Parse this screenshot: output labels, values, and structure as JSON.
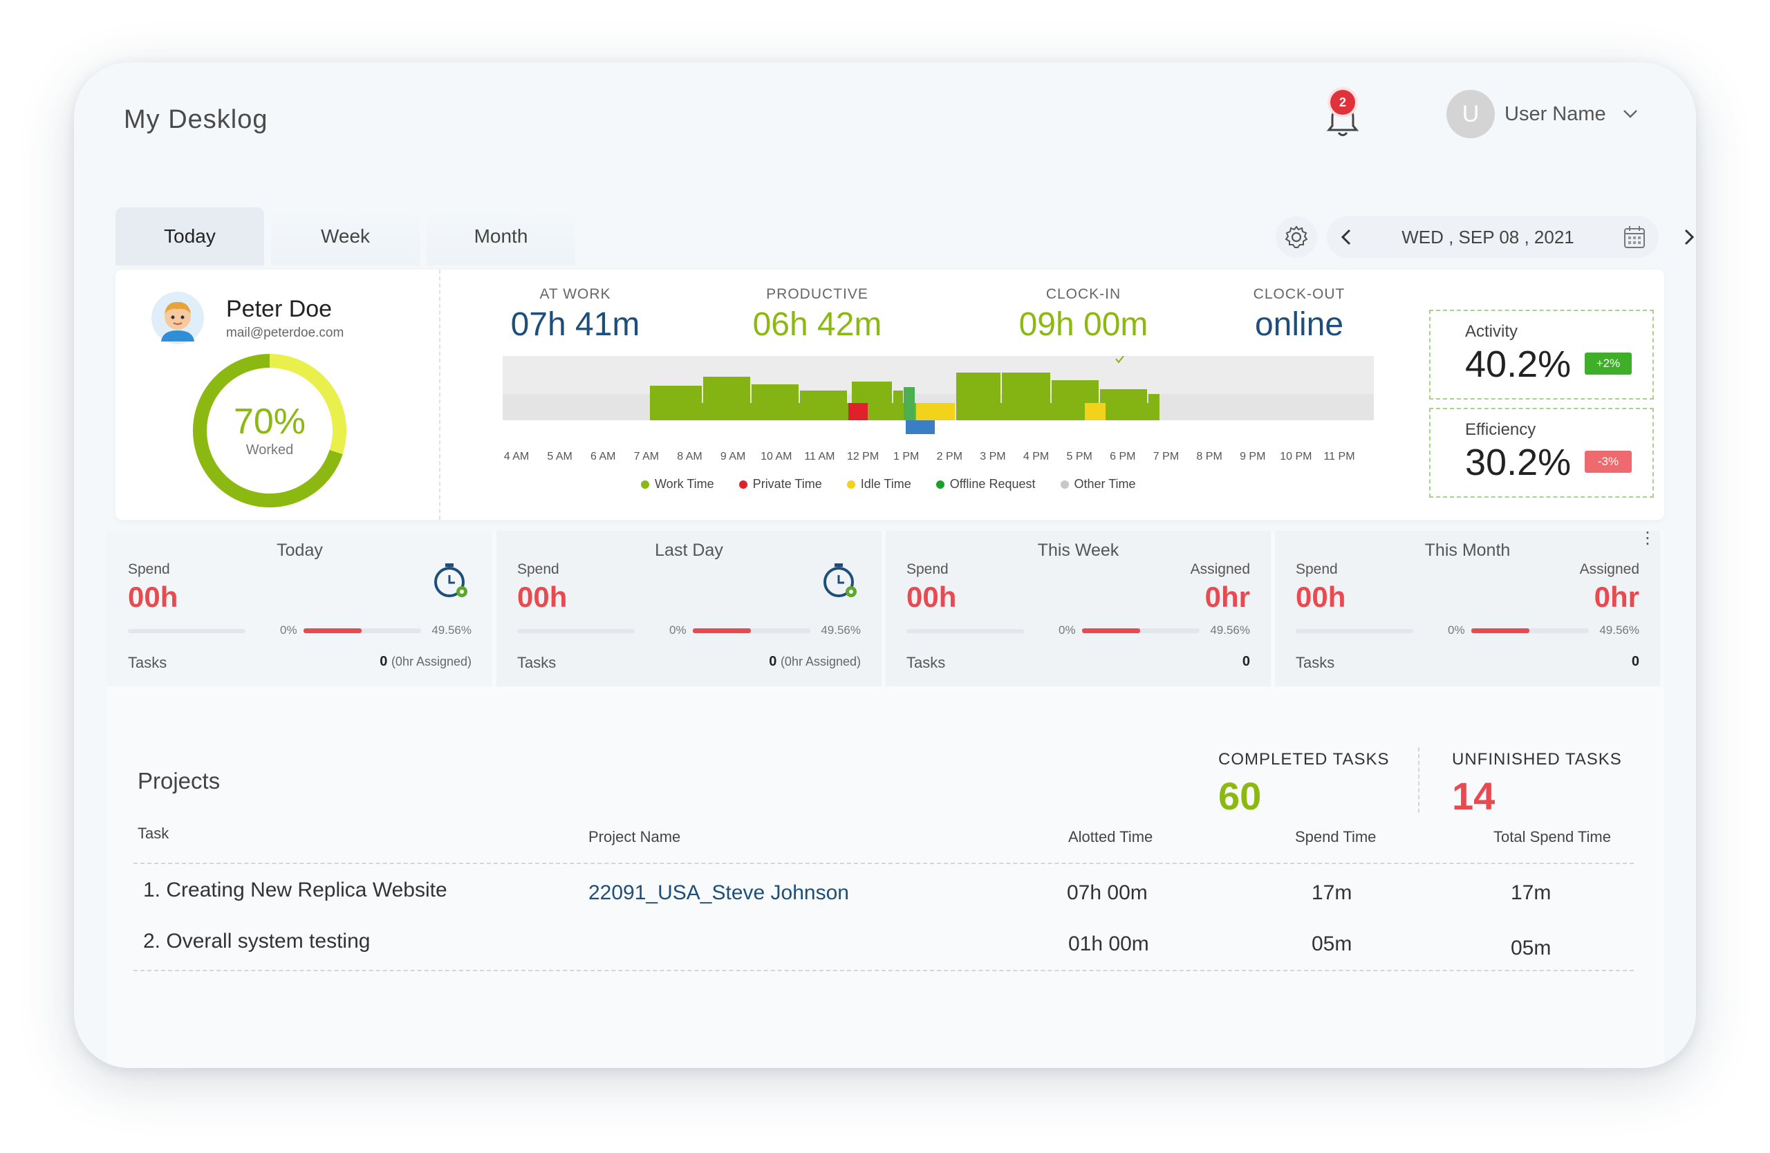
{
  "app": {
    "title": "My Desklog"
  },
  "header": {
    "notification_count": "2",
    "user_initial": "U",
    "user_name": "User Name"
  },
  "tabs": [
    {
      "label": "Today",
      "active": true
    },
    {
      "label": "Week"
    },
    {
      "label": "Month"
    }
  ],
  "date": {
    "text": "WED , SEP 08 , 2021"
  },
  "profile": {
    "name": "Peter Doe",
    "email": "mail@peterdoe.com",
    "worked_pct": "70%",
    "worked_label": "Worked",
    "worked_value": 0.7
  },
  "stats": {
    "at_work": {
      "label": "AT WORK",
      "value": "07h 41m",
      "color": "#1d4f7a"
    },
    "productive": {
      "label": "PRODUCTIVE",
      "value": "06h 42m",
      "color": "#8cb812"
    },
    "clock_in": {
      "label": "CLOCK-IN",
      "value": "09h 00m",
      "color": "#8cb812"
    },
    "clock_out": {
      "label": "CLOCK-OUT",
      "value": "online",
      "color": "#1d4f7a"
    }
  },
  "chart_data": {
    "type": "bar",
    "categories": [
      "4 AM",
      "5 AM",
      "6 AM",
      "7 AM",
      "8 AM",
      "9 AM",
      "10 AM",
      "11 AM",
      "12 PM",
      "1 PM",
      "2 PM",
      "3 PM",
      "4 PM",
      "5 PM",
      "6 PM",
      "7 PM",
      "8 PM",
      "9 PM",
      "10 PM",
      "11 PM"
    ],
    "legend": [
      {
        "name": "Work Time",
        "color": "#8cb812"
      },
      {
        "name": "Private Time",
        "color": "#e0202a"
      },
      {
        "name": "Idle Time",
        "color": "#f2d21b"
      },
      {
        "name": "Offline Request",
        "color": "#1aa12a"
      },
      {
        "name": "Other Time",
        "color": "#c8c8c8"
      }
    ]
  },
  "kpis": {
    "activity": {
      "label": "Activity",
      "value": "40.2%",
      "badge": "+2%",
      "badge_color": "#3fae29"
    },
    "efficiency": {
      "label": "Efficiency",
      "value": "30.2%",
      "badge": "-3%",
      "badge_color": "#ee6a6f"
    }
  },
  "cards": [
    {
      "title": "Today",
      "spend_label": "Spend",
      "spend": "00h",
      "pct_left": "0%",
      "pct_right": "49.56%",
      "progress": 0.4956,
      "tasks_label": "Tasks",
      "tasks": "0",
      "tasks_note": "(0hr Assigned)"
    },
    {
      "title": "Last Day",
      "spend_label": "Spend",
      "spend": "00h",
      "pct_left": "0%",
      "pct_right": "49.56%",
      "progress": 0.4956,
      "tasks_label": "Tasks",
      "tasks": "0",
      "tasks_note": "(0hr Assigned)"
    },
    {
      "title": "This Week",
      "spend_label": "Spend",
      "spend": "00h",
      "assigned_label": "Assigned",
      "assigned": "0hr",
      "pct_left": "0%",
      "pct_right": "49.56%",
      "progress": 0.4956,
      "tasks_label": "Tasks",
      "tasks": "0"
    },
    {
      "title": "This Month",
      "spend_label": "Spend",
      "spend": "00h",
      "assigned_label": "Assigned",
      "assigned": "0hr",
      "pct_left": "0%",
      "pct_right": "49.56%",
      "progress": 0.4956,
      "tasks_label": "Tasks",
      "tasks": "0"
    }
  ],
  "projects": {
    "title": "Projects",
    "completed_label": "COMPLETED TASKS",
    "completed": "60",
    "unfinished_label": "UNFINISHED TASKS",
    "unfinished": "14",
    "columns": [
      "Task",
      "Project Name",
      "Alotted Time",
      "Spend Time",
      "Total Spend Time"
    ],
    "rows": [
      {
        "task": "1. Creating New Replica Website",
        "project": "22091_USA_Steve Johnson",
        "alotted": "07h 00m",
        "spend": "17m",
        "total": "17m"
      },
      {
        "task": "2. Overall system testing",
        "project": "",
        "alotted": "01h 00m",
        "spend": "05m",
        "total": "05m"
      }
    ]
  }
}
